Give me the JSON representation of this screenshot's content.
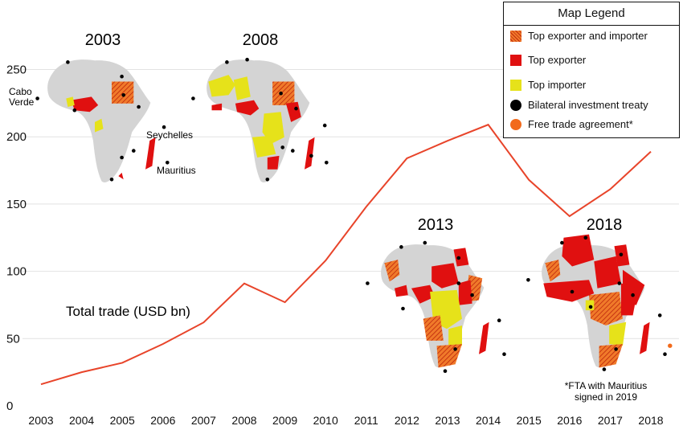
{
  "chart_data": {
    "type": "line",
    "x": [
      2003,
      2004,
      2005,
      2006,
      2007,
      2008,
      2009,
      2010,
      2011,
      2012,
      2013,
      2014,
      2015,
      2016,
      2017,
      2018
    ],
    "series": [
      {
        "name": "Total trade (USD bn)",
        "color": "#e8442a",
        "values": [
          16,
          25,
          32,
          46,
          62,
          91,
          77,
          108,
          148,
          184,
          197,
          209,
          168,
          141,
          161,
          189
        ]
      }
    ],
    "yticks": [
      0,
      50,
      100,
      150,
      200,
      250
    ],
    "ylim": [
      0,
      260
    ],
    "grid": "horizontal",
    "series_label": "Total trade (USD bn)"
  },
  "map_years": [
    "2003",
    "2008",
    "2013",
    "2018"
  ],
  "map_annotations": {
    "cabo_verde": [
      "Cabo",
      "Verde"
    ],
    "seychelles": "Seychelles",
    "mauritius": "Mauritius",
    "fta_note": [
      "*FTA with Mauritius",
      "signed in 2019"
    ]
  },
  "legend": {
    "title": "Map Legend",
    "items": [
      {
        "label": "Top exporter and importer",
        "color": "#e85a1a",
        "kind": "square"
      },
      {
        "label": "Top exporter",
        "color": "#e01010",
        "kind": "square"
      },
      {
        "label": "Top importer",
        "color": "#e6e21a",
        "kind": "square"
      },
      {
        "label": "Bilateral investment treaty",
        "color": "#000000",
        "kind": "dot"
      },
      {
        "label": "Free trade agreement*",
        "color": "#f26a1b",
        "kind": "dot"
      }
    ]
  },
  "colors": {
    "continent": "#d4d4d4",
    "exporter": "#e01010",
    "importer": "#e6e21a",
    "both": "#e85a1a"
  }
}
